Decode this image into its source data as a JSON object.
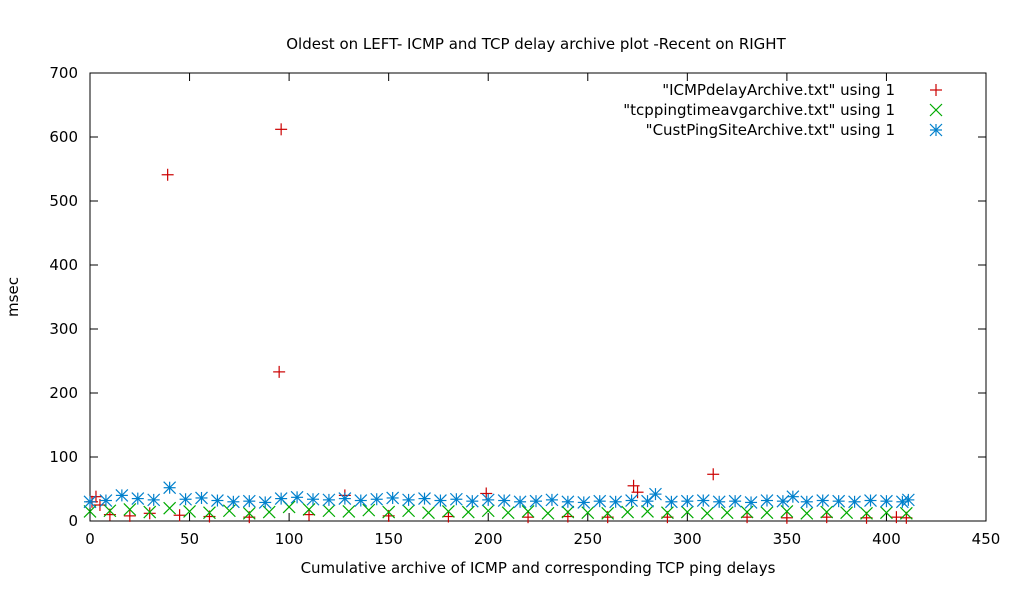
{
  "chart_data": {
    "type": "scatter",
    "title": "Oldest on LEFT- ICMP and TCP delay archive plot -Recent on RIGHT",
    "xlabel": "Cumulative archive of ICMP and corresponding TCP ping delays",
    "ylabel": "msec",
    "xlim": [
      0,
      450
    ],
    "ylim": [
      0,
      700
    ],
    "xticks": [
      0,
      50,
      100,
      150,
      200,
      250,
      300,
      350,
      400,
      450
    ],
    "yticks": [
      0,
      100,
      200,
      300,
      400,
      500,
      600,
      700
    ],
    "grid": false,
    "legend_position": "top-right",
    "series": [
      {
        "name": "\"ICMPdelayArchive.txt\" using 1",
        "marker": "plus",
        "color": "#cc0000",
        "x": [
          1,
          3,
          5,
          10,
          20,
          30,
          39,
          45,
          60,
          80,
          95,
          96,
          110,
          128,
          150,
          180,
          199,
          220,
          240,
          260,
          273,
          275,
          290,
          313,
          330,
          350,
          370,
          390,
          405,
          410
        ],
        "y": [
          30,
          38,
          25,
          10,
          8,
          12,
          541,
          9,
          7,
          6,
          233,
          612,
          10,
          40,
          8,
          7,
          43,
          6,
          7,
          6,
          55,
          45,
          6,
          73,
          6,
          5,
          6,
          5,
          6,
          5
        ]
      },
      {
        "name": "\"tcppingtimeavgarchive.txt\" using 1",
        "marker": "cross",
        "color": "#00aa00",
        "x": [
          0,
          10,
          20,
          30,
          40,
          50,
          60,
          70,
          80,
          90,
          100,
          110,
          120,
          130,
          140,
          150,
          160,
          170,
          180,
          190,
          200,
          210,
          220,
          230,
          240,
          250,
          260,
          270,
          280,
          290,
          300,
          310,
          320,
          330,
          340,
          350,
          360,
          370,
          380,
          390,
          400,
          410
        ],
        "y": [
          15,
          16,
          18,
          14,
          20,
          15,
          13,
          16,
          12,
          14,
          22,
          18,
          16,
          15,
          17,
          14,
          16,
          13,
          15,
          14,
          16,
          13,
          15,
          12,
          14,
          13,
          12,
          14,
          15,
          13,
          14,
          12,
          13,
          14,
          13,
          15,
          12,
          14,
          13,
          12,
          13,
          12
        ]
      },
      {
        "name": "\"CustPingSiteArchive.txt\" using 1",
        "marker": "star",
        "color": "#0080cc",
        "x": [
          0,
          8,
          16,
          24,
          32,
          40,
          48,
          56,
          64,
          72,
          80,
          88,
          96,
          104,
          112,
          120,
          128,
          136,
          144,
          152,
          160,
          168,
          176,
          184,
          192,
          200,
          208,
          216,
          224,
          232,
          240,
          248,
          256,
          264,
          272,
          280,
          284,
          292,
          300,
          308,
          316,
          324,
          332,
          340,
          348,
          353,
          360,
          368,
          376,
          384,
          392,
          400,
          408,
          411
        ],
        "y": [
          30,
          32,
          40,
          35,
          33,
          52,
          34,
          36,
          32,
          30,
          31,
          29,
          35,
          37,
          34,
          33,
          35,
          32,
          34,
          36,
          33,
          35,
          32,
          34,
          31,
          33,
          32,
          30,
          31,
          33,
          30,
          29,
          31,
          30,
          32,
          31,
          42,
          30,
          31,
          32,
          30,
          31,
          29,
          32,
          31,
          38,
          30,
          32,
          31,
          30,
          32,
          31,
          30,
          33
        ]
      }
    ]
  }
}
